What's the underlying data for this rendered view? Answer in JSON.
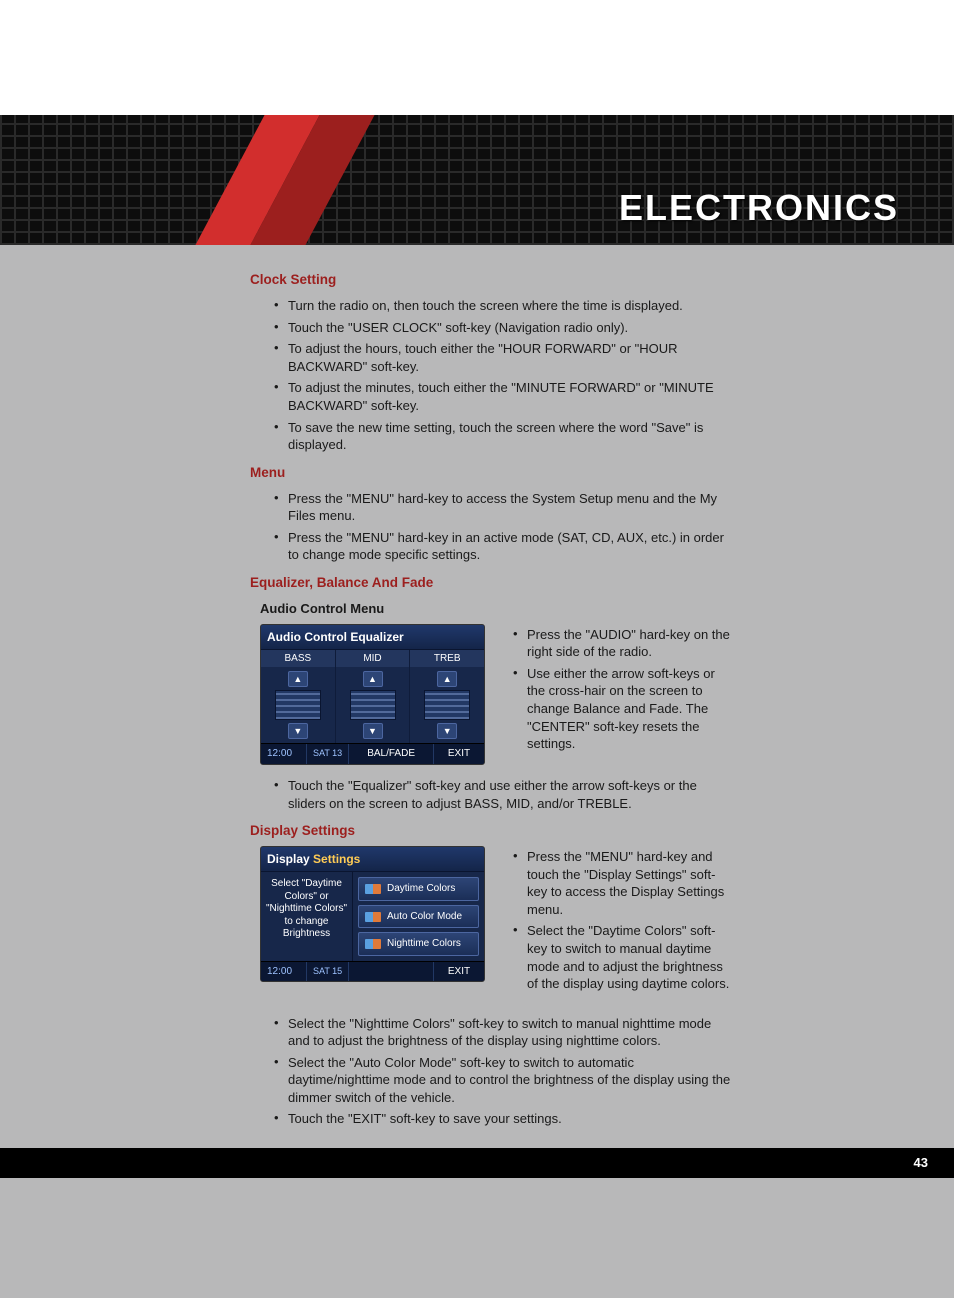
{
  "header": {
    "title": "ELECTRONICS"
  },
  "colors": {
    "accent_red": "#9c1f1e",
    "slash_red_light": "#d22e2d",
    "slash_red_dark": "#9c1f1e",
    "page_bg": "#b8b8b9",
    "header_bg": "#1a1a1a",
    "text": "#1a1a1a",
    "footer_bg": "#000000",
    "screenshot_bg": "#17274a",
    "screenshot_titlebar": "#20386b"
  },
  "sections": {
    "clock": {
      "heading": "Clock Setting",
      "bullets": [
        "Turn the radio on, then touch the screen where the time is displayed.",
        "Touch the \"USER CLOCK\" soft-key (Navigation radio only).",
        "To adjust the hours, touch either the \"HOUR FORWARD\" or \"HOUR BACKWARD\" soft-key.",
        "To adjust the minutes, touch either the \"MINUTE FORWARD\" or \"MINUTE BACKWARD\" soft-key.",
        "To save the new time setting, touch the screen where the word \"Save\" is displayed."
      ]
    },
    "menu": {
      "heading": "Menu",
      "bullets": [
        "Press the \"MENU\" hard-key to access the System Setup menu and the My Files menu.",
        "Press the \"MENU\" hard-key in an active mode (SAT, CD, AUX, etc.) in order to change mode specific settings."
      ]
    },
    "eq": {
      "heading": "Equalizer, Balance And Fade",
      "subhead": "Audio Control Menu",
      "screenshot": {
        "title": "Audio Control Equalizer",
        "col_labels": [
          "BASS",
          "MID",
          "TREB"
        ],
        "footer_time": "12:00",
        "footer_sat": "SAT 13",
        "footer_mid": "BAL/FADE",
        "footer_exit": "EXIT"
      },
      "side_bullets": [
        "Press the \"AUDIO\" hard-key on the right side of the radio.",
        "Use either the arrow soft-keys or the cross-hair on the screen to change Balance and Fade. The \"CENTER\" soft-key resets the settings."
      ],
      "below_bullets": [
        "Touch the \"Equalizer\" soft-key and use either the arrow soft-keys or the sliders on the screen to adjust BASS, MID, and/or TREBLE."
      ]
    },
    "display": {
      "heading": "Display Settings",
      "screenshot": {
        "title_a": "Display",
        "title_b": " Settings",
        "left_text": "Select \"Daytime Colors\" or \"Nighttime Colors\" to change Brightness",
        "buttons": [
          "Daytime Colors",
          "Auto Color Mode",
          "Nighttime Colors"
        ],
        "footer_time": "12:00",
        "footer_sat": "SAT 15",
        "footer_exit": "EXIT"
      },
      "side_bullets": [
        "Press the \"MENU\" hard-key and touch the \"Display Settings\" soft-key to access the Display Settings menu.",
        "Select the \"Daytime Colors\" soft-key to switch to manual daytime mode and to adjust the brightness of the display using daytime colors."
      ],
      "below_bullets": [
        "Select the \"Nighttime Colors\" soft-key to switch to manual nighttime mode and to adjust the brightness of the display using nighttime colors.",
        "Select the \"Auto Color Mode\" soft-key to switch to automatic daytime/nighttime mode and to control the brightness of the display using the dimmer switch of the vehicle.",
        "Touch the \"EXIT\" soft-key to save your settings."
      ]
    }
  },
  "footer": {
    "page_number": "43"
  }
}
